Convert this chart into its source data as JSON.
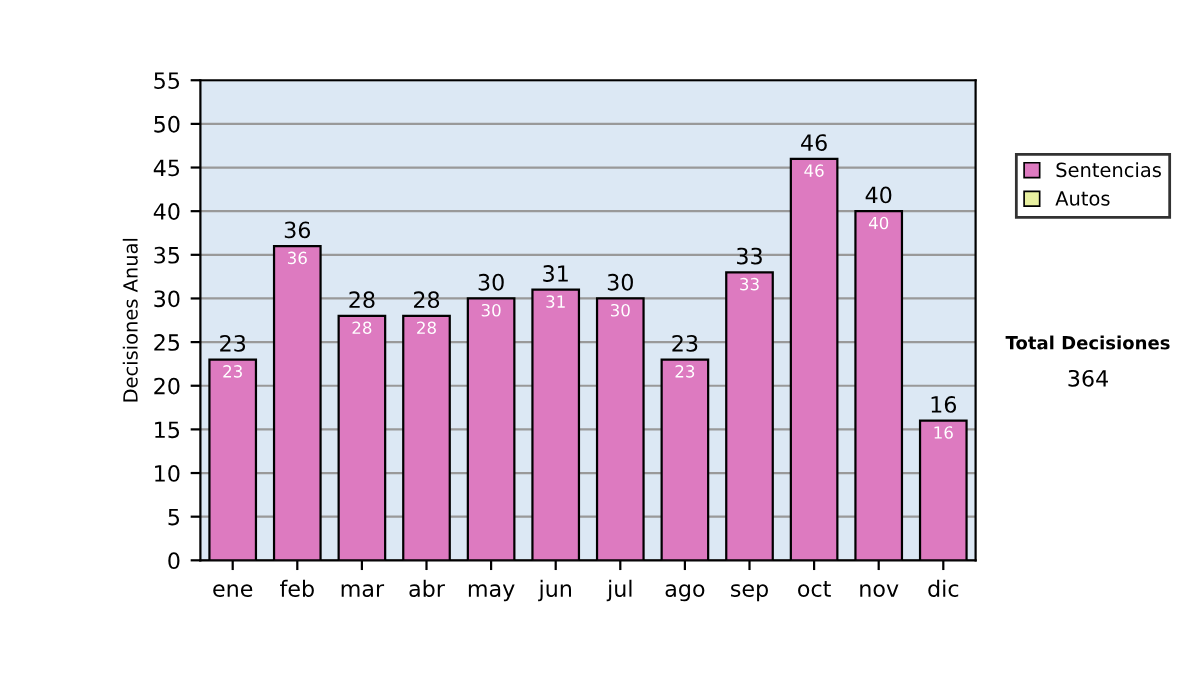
{
  "chart_data": {
    "type": "bar",
    "ylabel": "Decisiones Anual",
    "categories": [
      "ene",
      "feb",
      "mar",
      "abr",
      "may",
      "jun",
      "jul",
      "ago",
      "sep",
      "oct",
      "nov",
      "dic"
    ],
    "series": [
      {
        "name": "Sentencias",
        "color": "#dd7ac0",
        "values": [
          23,
          36,
          28,
          28,
          30,
          31,
          30,
          23,
          33,
          46,
          40,
          16
        ],
        "value_labels": [
          "23",
          "36",
          "28",
          "28",
          "30",
          "31",
          "30",
          "23",
          "33",
          "46",
          "40",
          "16"
        ]
      },
      {
        "name": "Autos",
        "color": "#e8f0a0",
        "values": [
          null,
          null,
          null,
          null,
          null,
          null,
          null,
          null,
          null,
          null,
          null,
          null
        ]
      }
    ],
    "ylim": [
      0,
      55
    ],
    "yticks": [
      0,
      5,
      10,
      15,
      20,
      25,
      30,
      35,
      40,
      45,
      50,
      55
    ],
    "grid": "y",
    "legend": "right",
    "annotations": [
      "Total Decisiones",
      "364",
      {
        "text": "23",
        "x": "ene",
        "y": 23
      },
      {
        "text": "36",
        "x": "feb",
        "y": 36
      },
      {
        "text": "28",
        "x": "mar",
        "y": 28
      },
      {
        "text": "28",
        "x": "abr",
        "y": 28
      },
      {
        "text": "30",
        "x": "may",
        "y": 30
      },
      {
        "text": "31",
        "x": "jun",
        "y": 31
      },
      {
        "text": "30",
        "x": "jul",
        "y": 30
      },
      {
        "text": "23",
        "x": "ago",
        "y": 23
      },
      {
        "text": "33",
        "x": "sep",
        "y": 33
      },
      {
        "text": "46",
        "x": "oct",
        "y": 46
      },
      {
        "text": "40",
        "x": "nov",
        "y": 40
      },
      {
        "text": "16",
        "x": "dic",
        "y": 16
      }
    ]
  }
}
